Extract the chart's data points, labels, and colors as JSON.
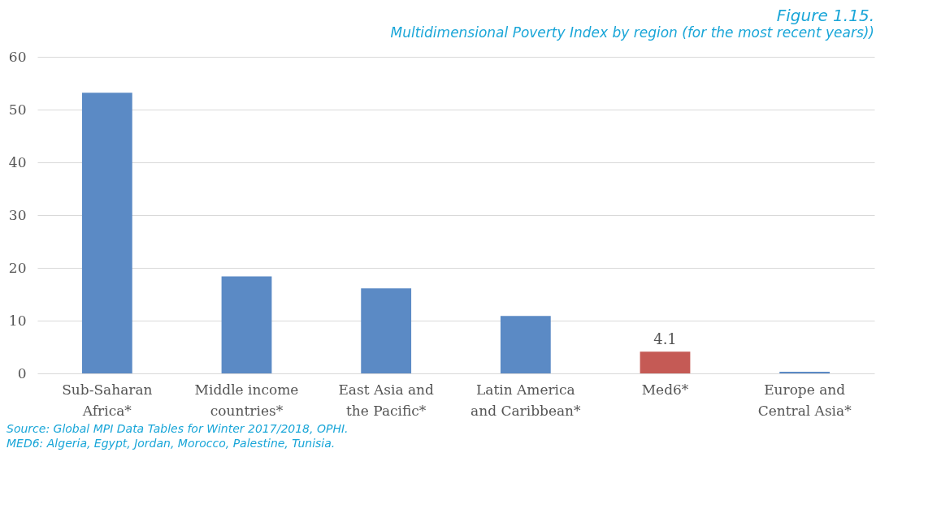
{
  "chart_data": {
    "type": "bar",
    "title": "Figure 1.15.",
    "subtitle": "Multidimensional Poverty Index by region (for the most recent years))",
    "categories": [
      "Sub-Saharan Africa*",
      "Middle income countries*",
      "East Asia and the Pacific*",
      "Latin America and Caribbean*",
      "Med6*",
      "Europe and Central Asia*"
    ],
    "values": [
      53.2,
      18.4,
      16.1,
      10.9,
      4.1,
      0.3
    ],
    "colors": [
      "#5b8ac5",
      "#5b8ac5",
      "#5b8ac5",
      "#5b8ac5",
      "#c55a55",
      "#5b8ac5"
    ],
    "value_labels": [
      null,
      null,
      null,
      null,
      "4.1",
      null
    ],
    "ylim": [
      0,
      60
    ],
    "yticks": [
      0,
      10,
      20,
      30,
      40,
      50,
      60
    ],
    "grid": "y",
    "annotations": [
      "Source: Global MPI Data Tables for Winter 2017/2018, OPHI.",
      "MED6: Algeria, Egypt, Jordan, Morocco, Palestine, Tunisia."
    ]
  }
}
